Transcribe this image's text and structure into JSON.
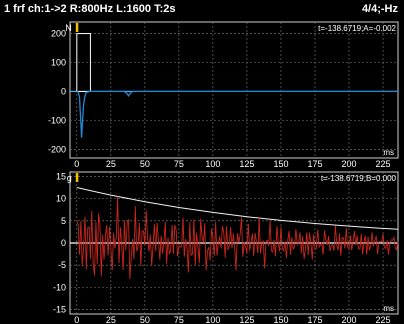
{
  "window": {
    "title": "1 frf ch:1->2 R:800Hz L:1600 T:2s",
    "page_indicator": "4/4;-Hz"
  },
  "colors": {
    "background": "#000000",
    "plot_border": "#cfcfcf",
    "grid": "#7f7f7f",
    "top_trace": "#1f8ad6",
    "bottom_trace": "#c8261e",
    "envelope": "#f2f2f2",
    "zero_line_top": "#35c0ff",
    "zero_line_bottom": "#ffffff",
    "cursor": "#f2c200"
  },
  "chart_data": [
    {
      "type": "line",
      "panel": "top",
      "marker_label": "N",
      "readout": "t=-138.6719;A=-0.002",
      "xlabel": "ms",
      "ylabel": "",
      "xlim": [
        -5,
        236
      ],
      "ylim": [
        -230,
        240
      ],
      "x_ticks": [
        0,
        25,
        50,
        75,
        100,
        125,
        150,
        175,
        200,
        225
      ],
      "y_ticks": [
        200,
        100,
        0,
        -100,
        -200
      ],
      "grid": true,
      "window_box": {
        "x": [
          0,
          10
        ],
        "y": [
          0,
          200
        ]
      },
      "series": [
        {
          "values_x": [
            0,
            1,
            2,
            3,
            3.5,
            4,
            5,
            6,
            7,
            10,
            20,
            30,
            35,
            37,
            38,
            39,
            41,
            45,
            60,
            100,
            150,
            200,
            236
          ],
          "values_y": [
            0,
            -2,
            -20,
            -110,
            -160,
            -120,
            -45,
            -15,
            -3,
            0,
            0,
            0,
            0,
            -8,
            -15,
            -8,
            0,
            0,
            0,
            0,
            0,
            0,
            0
          ]
        }
      ]
    },
    {
      "type": "line",
      "panel": "bottom",
      "marker_label": "g",
      "readout": "t=-138.6719;B=0.000",
      "xlabel": "ms",
      "ylabel": "",
      "xlim": [
        -5,
        236
      ],
      "ylim": [
        -16,
        16
      ],
      "x_ticks": [
        0,
        25,
        50,
        75,
        100,
        125,
        150,
        175,
        200,
        225
      ],
      "y_ticks": [
        15,
        10,
        5,
        0,
        -5,
        -10,
        -15
      ],
      "grid": true,
      "envelope": {
        "x": [
          0,
          10,
          25,
          50,
          75,
          100,
          125,
          150,
          175,
          200,
          225,
          236
        ],
        "y": [
          12.5,
          11.8,
          10.8,
          9.3,
          8.0,
          6.9,
          5.9,
          5.1,
          4.4,
          3.8,
          3.3,
          3.1
        ]
      },
      "series": [
        {
          "name": "",
          "oscillation": {
            "x_start": 0,
            "x_end": 236,
            "step": 1.0
          }
        }
      ]
    }
  ]
}
